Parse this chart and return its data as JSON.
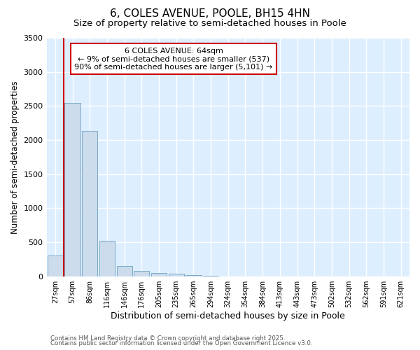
{
  "title": "6, COLES AVENUE, POOLE, BH15 4HN",
  "subtitle": "Size of property relative to semi-detached houses in Poole",
  "xlabel": "Distribution of semi-detached houses by size in Poole",
  "ylabel": "Number of semi-detached properties",
  "categories": [
    "27sqm",
    "57sqm",
    "86sqm",
    "116sqm",
    "146sqm",
    "176sqm",
    "205sqm",
    "235sqm",
    "265sqm",
    "294sqm",
    "324sqm",
    "354sqm",
    "384sqm",
    "413sqm",
    "443sqm",
    "473sqm",
    "502sqm",
    "532sqm",
    "562sqm",
    "591sqm",
    "621sqm"
  ],
  "values": [
    310,
    2540,
    2130,
    520,
    155,
    75,
    50,
    40,
    15,
    5,
    2,
    1,
    1,
    0,
    0,
    0,
    0,
    0,
    0,
    0,
    0
  ],
  "bar_color": "#ccdcec",
  "bar_edge_color": "#7aaac8",
  "vline_x": 0.5,
  "vline_color": "#cc0000",
  "annotation_text": "6 COLES AVENUE: 64sqm\n← 9% of semi-detached houses are smaller (537)\n90% of semi-detached houses are larger (5,101) →",
  "annotation_box_color": "#ffffff",
  "annotation_box_edge": "#cc0000",
  "ylim": [
    0,
    3500
  ],
  "yticks": [
    0,
    500,
    1000,
    1500,
    2000,
    2500,
    3000,
    3500
  ],
  "footnote1": "Contains HM Land Registry data © Crown copyright and database right 2025.",
  "footnote2": "Contains public sector information licensed under the Open Government Licence v3.0.",
  "bg_color": "#ffffff",
  "plot_bg_color": "#ddeeff",
  "grid_color": "#ffffff",
  "title_fontsize": 11,
  "subtitle_fontsize": 9.5,
  "tick_fontsize": 7,
  "ylabel_fontsize": 8.5,
  "xlabel_fontsize": 9
}
